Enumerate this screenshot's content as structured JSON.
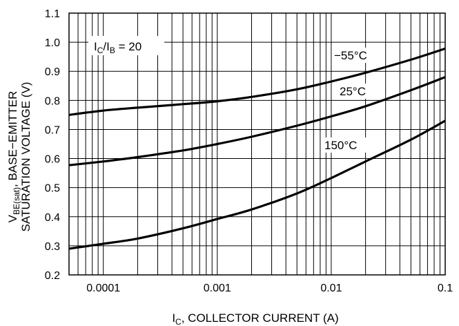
{
  "chart_data": {
    "type": "line",
    "xscale": "log",
    "xlim": [
      5e-05,
      0.1
    ],
    "ylim": [
      0.2,
      1.1
    ],
    "grid": true,
    "x_tick_values": [
      0.0001,
      0.001,
      0.01,
      0.1
    ],
    "x_tick_labels": [
      "0.0001",
      "0.001",
      "0.01",
      "0.1"
    ],
    "y_tick_values": [
      0.2,
      0.3,
      0.4,
      0.5,
      0.6,
      0.7,
      0.8,
      0.9,
      1.0,
      1.1
    ],
    "y_tick_labels": [
      "0.2",
      "0.3",
      "0.4",
      "0.5",
      "0.6",
      "0.7",
      "0.8",
      "0.9",
      "1.0",
      "1.1"
    ],
    "xlabel": {
      "main": "I",
      "sub": "C",
      "rest": ", COLLECTOR CURRENT (A)"
    },
    "ylabel": {
      "main": "V",
      "sub": "BE(sat)",
      "rest": ", BASE−EMITTER",
      "line2": "SATURATION VOLTAGE (V)"
    },
    "annotation": {
      "i1": "I",
      "s1": "C",
      "slash": "/I",
      "s2": "B",
      "rest": " = 20"
    },
    "series": [
      {
        "name": "−55°C",
        "x": [
          5e-05,
          0.0001,
          0.0002,
          0.0005,
          0.001,
          0.002,
          0.005,
          0.01,
          0.02,
          0.05,
          0.1
        ],
        "y": [
          0.75,
          0.765,
          0.775,
          0.787,
          0.797,
          0.812,
          0.838,
          0.865,
          0.895,
          0.94,
          0.978
        ]
      },
      {
        "name": "25°C",
        "x": [
          5e-05,
          0.0001,
          0.0002,
          0.0005,
          0.001,
          0.002,
          0.005,
          0.01,
          0.02,
          0.05,
          0.1
        ],
        "y": [
          0.577,
          0.59,
          0.605,
          0.628,
          0.65,
          0.675,
          0.713,
          0.745,
          0.78,
          0.835,
          0.88
        ]
      },
      {
        "name": "150°C",
        "x": [
          5e-05,
          0.0001,
          0.0002,
          0.0005,
          0.001,
          0.002,
          0.005,
          0.01,
          0.02,
          0.05,
          0.1
        ],
        "y": [
          0.29,
          0.307,
          0.325,
          0.36,
          0.392,
          0.425,
          0.48,
          0.533,
          0.59,
          0.665,
          0.73
        ]
      }
    ]
  }
}
